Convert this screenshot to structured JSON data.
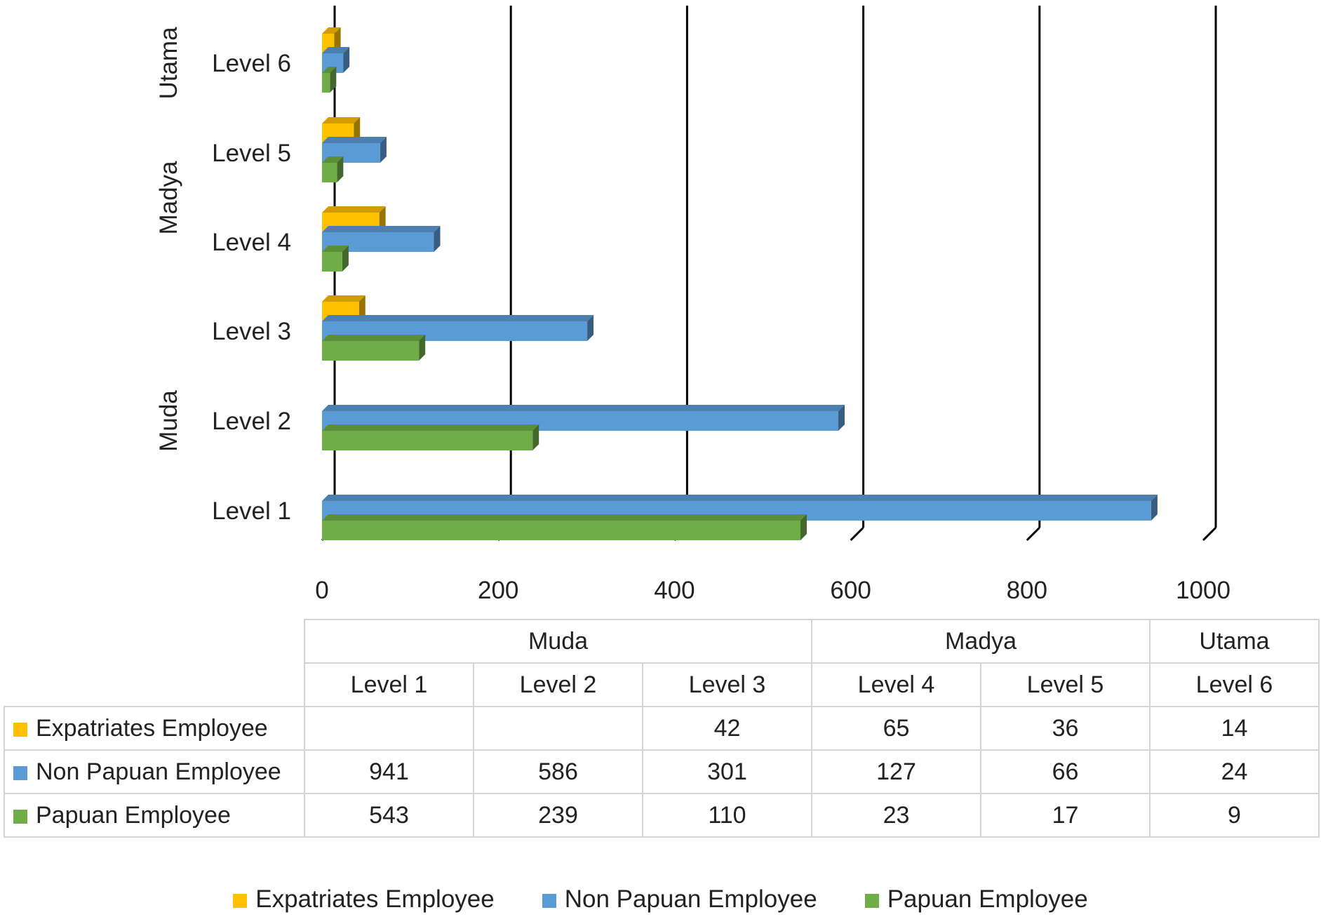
{
  "chart_data": {
    "type": "bar",
    "orientation": "horizontal",
    "three_d": true,
    "xlim": [
      0,
      1000
    ],
    "x_ticks": [
      "0",
      "200",
      "400",
      "600",
      "800",
      "1000"
    ],
    "groups": [
      {
        "name": "Muda",
        "levels": [
          "Level 1",
          "Level 2",
          "Level 3"
        ]
      },
      {
        "name": "Madya",
        "levels": [
          "Level 4",
          "Level 5"
        ]
      },
      {
        "name": "Utama",
        "levels": [
          "Level 6"
        ]
      }
    ],
    "categories": [
      "Level 1",
      "Level 2",
      "Level 3",
      "Level 4",
      "Level 5",
      "Level 6"
    ],
    "series": [
      {
        "name": "Expatriates Employee",
        "color": "#FFC000",
        "values": [
          null,
          null,
          42,
          65,
          36,
          14
        ]
      },
      {
        "name": "Non Papuan Employee",
        "color": "#5B9BD5",
        "values": [
          941,
          586,
          301,
          127,
          66,
          24
        ]
      },
      {
        "name": "Papuan Employee",
        "color": "#70AD47",
        "values": [
          543,
          239,
          110,
          23,
          17,
          9
        ]
      }
    ],
    "legend_position": "bottom",
    "data_table": true,
    "grid": true
  }
}
